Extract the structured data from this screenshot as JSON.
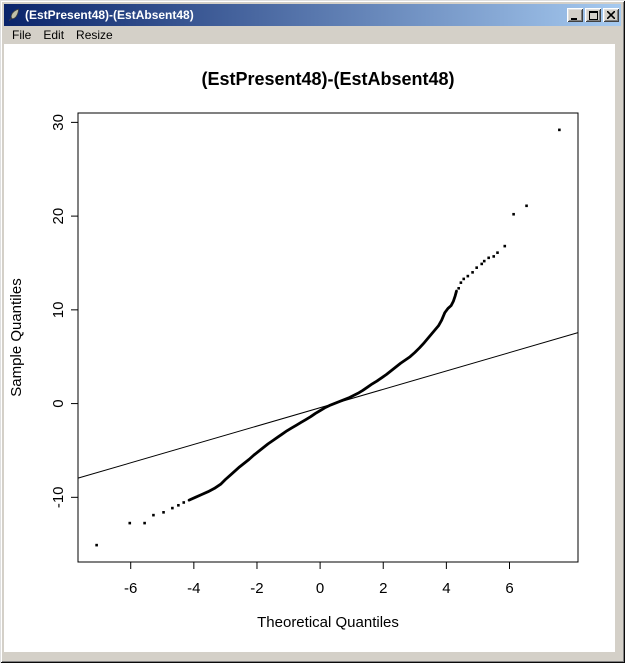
{
  "window": {
    "title": "(EstPresent48)-(EstAbsent48)",
    "icon": "r-graphics-feather",
    "menu": [
      "File",
      "Edit",
      "Resize"
    ],
    "controls": [
      "minimize",
      "maximize",
      "close"
    ]
  },
  "colors": {
    "chrome": "#d4d0c8",
    "titlebar_left": "#0a246a",
    "titlebar_right": "#a6caf0",
    "title_text": "#ffffff",
    "plot_bg": "#ffffff",
    "ink": "#000000"
  },
  "chart_data": {
    "type": "scatter",
    "subtype": "normal-qq-plot",
    "title": "(EstPresent48)-(EstAbsent48)",
    "xlabel": "Theoretical Quantiles",
    "ylabel": "Sample Quantiles",
    "x_ticks": [
      -6,
      -4,
      -2,
      0,
      2,
      4,
      6
    ],
    "y_ticks": [
      -10,
      0,
      10,
      20,
      30
    ],
    "xlim": [
      -7.67,
      8.17
    ],
    "ylim": [
      -16.9,
      31.0
    ],
    "grid": false,
    "legend": "none",
    "reference_line": {
      "slope": 0.98,
      "intercept": -0.44
    },
    "dense_curve": [
      [
        -4.15,
        -10.3
      ],
      [
        -3.95,
        -10.0
      ],
      [
        -3.75,
        -9.7
      ],
      [
        -3.55,
        -9.4
      ],
      [
        -3.35,
        -9.05
      ],
      [
        -3.15,
        -8.6
      ],
      [
        -3.0,
        -8.1
      ],
      [
        -2.85,
        -7.65
      ],
      [
        -2.7,
        -7.2
      ],
      [
        -2.55,
        -6.75
      ],
      [
        -2.4,
        -6.35
      ],
      [
        -2.25,
        -5.95
      ],
      [
        -2.1,
        -5.5
      ],
      [
        -1.95,
        -5.1
      ],
      [
        -1.8,
        -4.7
      ],
      [
        -1.65,
        -4.3
      ],
      [
        -1.5,
        -3.95
      ],
      [
        -1.35,
        -3.6
      ],
      [
        -1.2,
        -3.25
      ],
      [
        -1.05,
        -2.9
      ],
      [
        -0.9,
        -2.6
      ],
      [
        -0.75,
        -2.3
      ],
      [
        -0.6,
        -2.0
      ],
      [
        -0.45,
        -1.7
      ],
      [
        -0.3,
        -1.4
      ],
      [
        -0.15,
        -1.05
      ],
      [
        0,
        -0.75
      ],
      [
        0.15,
        -0.45
      ],
      [
        0.3,
        -0.2
      ],
      [
        0.45,
        0.0
      ],
      [
        0.6,
        0.2
      ],
      [
        0.75,
        0.4
      ],
      [
        0.9,
        0.6
      ],
      [
        1.05,
        0.85
      ],
      [
        1.2,
        1.1
      ],
      [
        1.35,
        1.4
      ],
      [
        1.5,
        1.75
      ],
      [
        1.65,
        2.1
      ],
      [
        1.8,
        2.4
      ],
      [
        1.95,
        2.75
      ],
      [
        2.1,
        3.1
      ],
      [
        2.25,
        3.5
      ],
      [
        2.4,
        3.9
      ],
      [
        2.55,
        4.3
      ],
      [
        2.7,
        4.65
      ],
      [
        2.85,
        5.0
      ],
      [
        3.0,
        5.45
      ],
      [
        3.15,
        5.95
      ],
      [
        3.3,
        6.5
      ],
      [
        3.45,
        7.1
      ],
      [
        3.6,
        7.7
      ],
      [
        3.75,
        8.3
      ],
      [
        3.85,
        8.9
      ],
      [
        3.95,
        9.7
      ],
      [
        4.05,
        10.15
      ],
      [
        4.15,
        10.45
      ],
      [
        4.22,
        10.9
      ],
      [
        4.28,
        11.5
      ],
      [
        4.32,
        12.0
      ]
    ],
    "outliers_left": [
      [
        -7.08,
        -15.1
      ],
      [
        -6.03,
        -12.75
      ],
      [
        -5.56,
        -12.75
      ],
      [
        -5.28,
        -11.9
      ],
      [
        -4.96,
        -11.6
      ],
      [
        -4.68,
        -11.15
      ],
      [
        -4.49,
        -10.85
      ],
      [
        -4.32,
        -10.55
      ]
    ],
    "outliers_right": [
      [
        4.39,
        12.3
      ],
      [
        4.46,
        12.9
      ],
      [
        4.55,
        13.3
      ],
      [
        4.68,
        13.6
      ],
      [
        4.83,
        14.0
      ],
      [
        4.96,
        14.5
      ],
      [
        5.12,
        14.9
      ],
      [
        5.2,
        15.2
      ],
      [
        5.34,
        15.55
      ],
      [
        5.5,
        15.7
      ],
      [
        5.62,
        16.1
      ],
      [
        5.85,
        16.8
      ],
      [
        6.13,
        20.2
      ],
      [
        6.54,
        21.1
      ],
      [
        7.58,
        29.2
      ]
    ]
  }
}
